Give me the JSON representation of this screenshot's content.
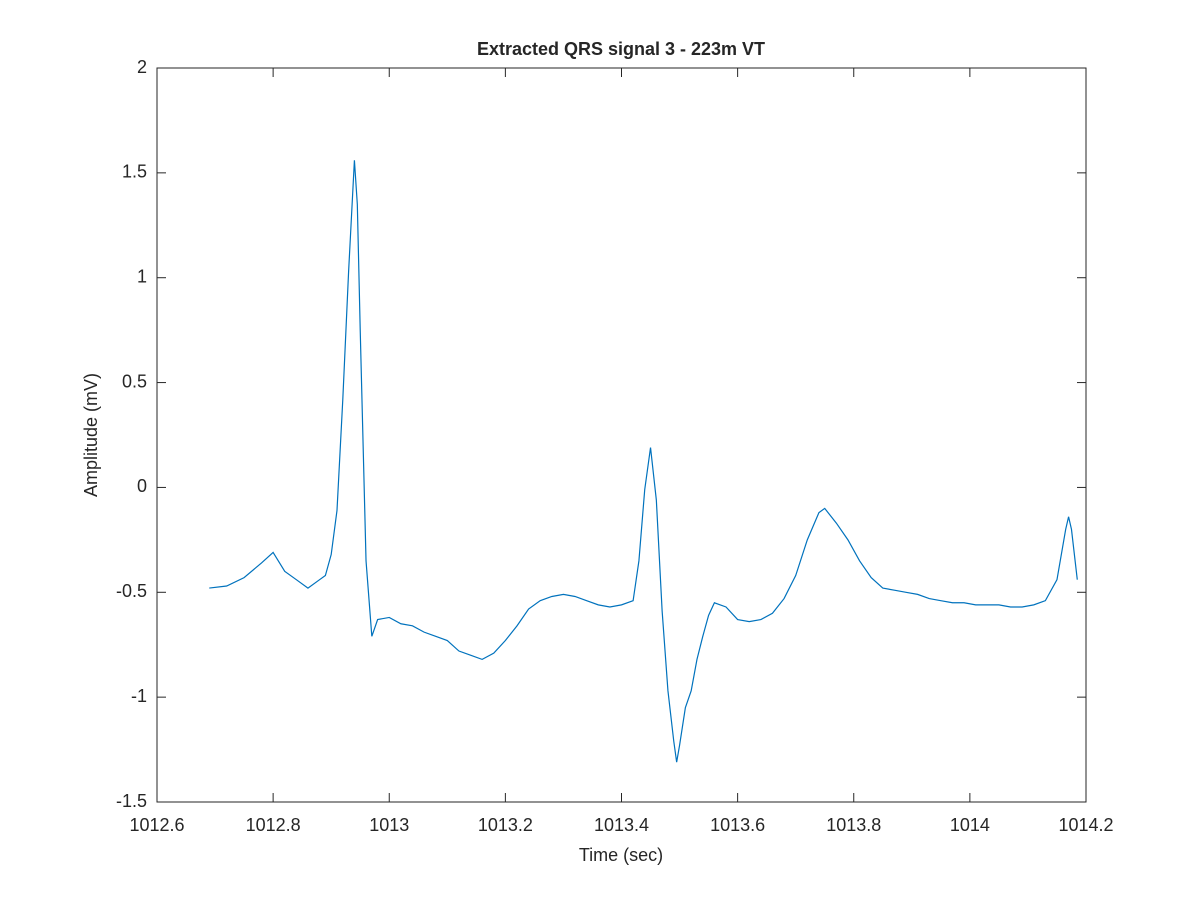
{
  "chart_data": {
    "type": "line",
    "title": "Extracted QRS signal 3 - 223m VT",
    "xlabel": "Time (sec)",
    "ylabel": "Amplitude (mV)",
    "x": [
      1012.69,
      1012.72,
      1012.75,
      1012.78,
      1012.8,
      1012.82,
      1012.84,
      1012.86,
      1012.88,
      1012.89,
      1012.9,
      1012.91,
      1012.92,
      1012.93,
      1012.94,
      1012.945,
      1012.95,
      1012.96,
      1012.97,
      1012.98,
      1013.0,
      1013.02,
      1013.04,
      1013.06,
      1013.08,
      1013.1,
      1013.12,
      1013.14,
      1013.16,
      1013.18,
      1013.2,
      1013.22,
      1013.24,
      1013.26,
      1013.28,
      1013.3,
      1013.32,
      1013.34,
      1013.36,
      1013.38,
      1013.4,
      1013.42,
      1013.43,
      1013.44,
      1013.45,
      1013.46,
      1013.47,
      1013.48,
      1013.49,
      1013.495,
      1013.5,
      1013.51,
      1013.52,
      1013.53,
      1013.54,
      1013.55,
      1013.56,
      1013.58,
      1013.6,
      1013.62,
      1013.64,
      1013.66,
      1013.68,
      1013.7,
      1013.72,
      1013.74,
      1013.75,
      1013.77,
      1013.79,
      1013.81,
      1013.83,
      1013.85,
      1013.87,
      1013.89,
      1013.91,
      1013.93,
      1013.95,
      1013.97,
      1013.99,
      1014.01,
      1014.03,
      1014.05,
      1014.07,
      1014.09,
      1014.11,
      1014.13,
      1014.15,
      1014.165,
      1014.17,
      1014.175,
      1014.185
    ],
    "series": [
      {
        "color": "#0072bd",
        "values": [
          -0.48,
          -0.47,
          -0.43,
          -0.36,
          -0.31,
          -0.4,
          -0.44,
          -0.48,
          -0.44,
          -0.42,
          -0.32,
          -0.11,
          0.42,
          1.03,
          1.56,
          1.35,
          0.75,
          -0.35,
          -0.71,
          -0.63,
          -0.62,
          -0.65,
          -0.66,
          -0.69,
          -0.71,
          -0.73,
          -0.78,
          -0.8,
          -0.82,
          -0.79,
          -0.73,
          -0.66,
          -0.58,
          -0.54,
          -0.52,
          -0.51,
          -0.52,
          -0.54,
          -0.56,
          -0.57,
          -0.56,
          -0.54,
          -0.35,
          -0.01,
          0.19,
          -0.06,
          -0.59,
          -0.97,
          -1.21,
          -1.31,
          -1.23,
          -1.05,
          -0.97,
          -0.82,
          -0.71,
          -0.61,
          -0.55,
          -0.57,
          -0.63,
          -0.64,
          -0.63,
          -0.6,
          -0.53,
          -0.42,
          -0.25,
          -0.12,
          -0.1,
          -0.17,
          -0.25,
          -0.35,
          -0.43,
          -0.48,
          -0.49,
          -0.5,
          -0.51,
          -0.53,
          -0.54,
          -0.55,
          -0.55,
          -0.56,
          -0.56,
          -0.56,
          -0.57,
          -0.57,
          -0.56,
          -0.54,
          -0.44,
          -0.2,
          -0.14,
          -0.2,
          -0.44
        ]
      }
    ],
    "xlim": [
      1012.6,
      1014.2
    ],
    "xticks": [
      1012.6,
      1012.8,
      1013,
      1013.2,
      1013.4,
      1013.6,
      1013.8,
      1014,
      1014.2
    ],
    "ylim": [
      -1.5,
      2
    ],
    "yticks": [
      -1.5,
      -1,
      -0.5,
      0,
      0.5,
      1,
      1.5,
      2
    ],
    "grid": false
  }
}
